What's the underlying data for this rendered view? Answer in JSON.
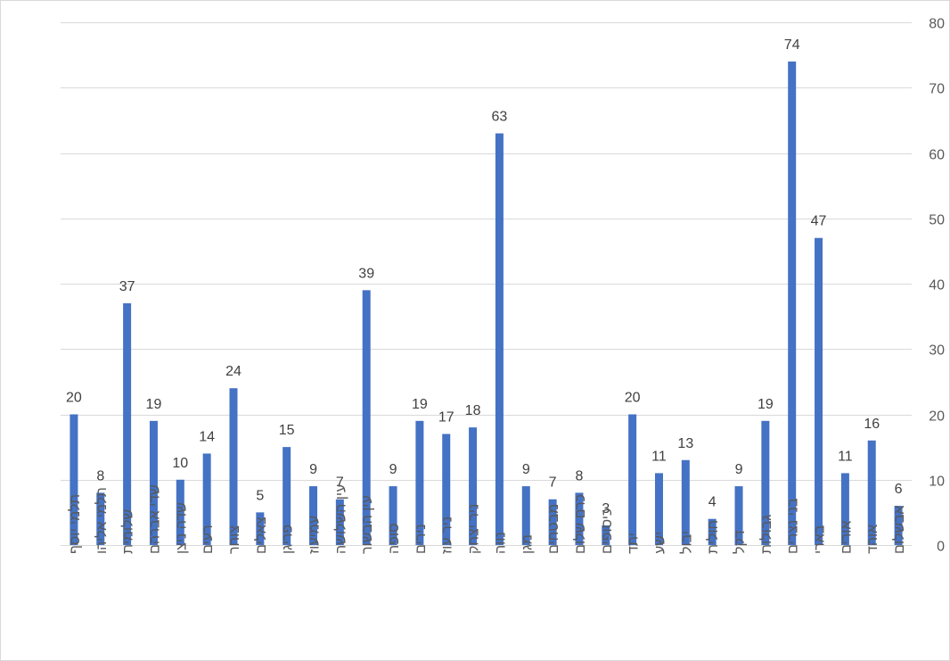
{
  "chart_data": {
    "type": "bar",
    "title": "",
    "xlabel": "",
    "ylabel": "",
    "ylim": [
      0,
      80
    ],
    "yticks": [
      0,
      10,
      20,
      30,
      40,
      50,
      60,
      70,
      80
    ],
    "y_axis_side": "right",
    "grid": true,
    "legend": "none",
    "bar_color": "#4472C4",
    "grid_color": "#d9d9d9",
    "categories": [
      "תלמי יוסף",
      "תלמי אליהו",
      "שלומית",
      "שדי אברהם",
      "שדה ניצן",
      "רעים",
      "צוחר",
      "צאלים",
      "פריגן",
      "עמיעוז",
      "עין השלושה",
      "עין הבשור",
      "סופה",
      "נירים",
      "ניר עוז",
      "ניר יצחק",
      "נווה",
      "מגן",
      "מבטחים",
      "כרם שלום",
      "כיסופים",
      "יתד",
      "ישע",
      "יבול",
      "חולית",
      "דקל",
      "גבולות",
      "בני נצרים",
      "בארי",
      "אורים",
      "אוהד",
      "אבשלום"
    ],
    "values": [
      20,
      8,
      37,
      19,
      10,
      14,
      24,
      5,
      15,
      9,
      7,
      39,
      9,
      19,
      17,
      18,
      63,
      9,
      7,
      8,
      3,
      20,
      11,
      13,
      4,
      9,
      19,
      74,
      47,
      11,
      16,
      6
    ]
  }
}
